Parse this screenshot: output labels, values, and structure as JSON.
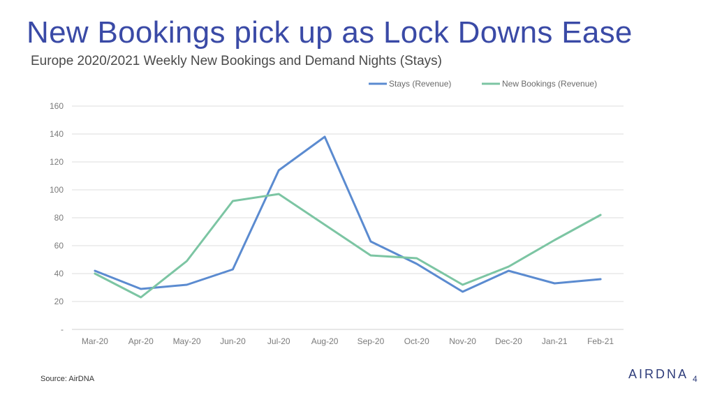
{
  "slide": {
    "title": "New Bookings pick up as Lock Downs Ease",
    "source": "Source: AirDNA",
    "logo": "AIRDNA",
    "page_number": "4"
  },
  "colors": {
    "title": "#3a4aa6",
    "stays": "#5b8bd0",
    "bookings": "#7cc5a3",
    "grid": "#dedede"
  },
  "chart_data": {
    "type": "line",
    "title": "Europe 2020/2021 Weekly New Bookings and Demand Nights (Stays)",
    "xlabel": "",
    "ylabel": "",
    "categories": [
      "Mar-20",
      "Apr-20",
      "May-20",
      "Jun-20",
      "Jul-20",
      "Aug-20",
      "Sep-20",
      "Oct-20",
      "Nov-20",
      "Dec-20",
      "Jan-21",
      "Feb-21"
    ],
    "y_ticks": [
      "-",
      "20",
      "40",
      "60",
      "80",
      "100",
      "120",
      "140",
      "160"
    ],
    "ylim": [
      0,
      160
    ],
    "legend_position": "top-right",
    "grid": true,
    "series": [
      {
        "name": "Stays (Revenue)",
        "color": "#5b8bd0",
        "values": [
          42,
          29,
          32,
          43,
          114,
          138,
          63,
          47,
          27,
          42,
          33,
          36
        ]
      },
      {
        "name": "New Bookings (Revenue)",
        "color": "#7cc5a3",
        "values": [
          40,
          23,
          49,
          92,
          97,
          75,
          53,
          51,
          32,
          45,
          64,
          82
        ]
      }
    ]
  }
}
